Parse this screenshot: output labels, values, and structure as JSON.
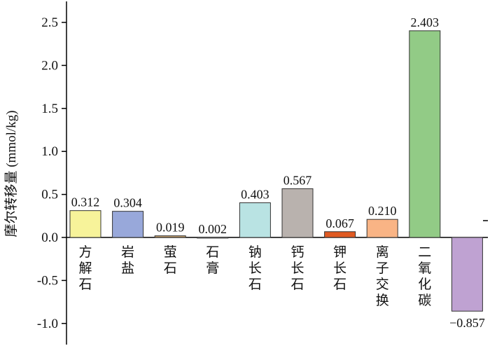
{
  "chart_data": {
    "type": "bar",
    "ylabel": "摩尔转移量 (mmol/kg)",
    "ylim": [
      -1.25,
      2.7
    ],
    "yticks": [
      2.5,
      2.0,
      1.5,
      1.0,
      0.5,
      0.0,
      -0.5,
      -1.0
    ],
    "ytick_labels": [
      "2.5",
      "2.0",
      "1.5",
      "1.0",
      "0.5",
      "0.0",
      "-0.5",
      "-1.0"
    ],
    "grid": false,
    "categories": [
      "方解石",
      "岩盐",
      "萤石",
      "石膏",
      "钠长石",
      "钙长石",
      "钾长石",
      "离子交换",
      "二氧化碳",
      ""
    ],
    "values": [
      0.312,
      0.304,
      0.019,
      0.002,
      0.403,
      0.567,
      0.067,
      0.21,
      2.403,
      -0.857
    ],
    "value_labels": [
      "0.312",
      "0.304",
      "0.019",
      "0.002",
      "0.403",
      "0.567",
      "0.067",
      "0.210",
      "2.403",
      "−0.857"
    ],
    "colors": [
      "#f7f39a",
      "#98a8da",
      "#c9a470",
      "#d8d8d8",
      "#b9e3e3",
      "#b9b2ae",
      "#e05a22",
      "#f9b485",
      "#92cb86",
      "#bfa2d2"
    ]
  }
}
